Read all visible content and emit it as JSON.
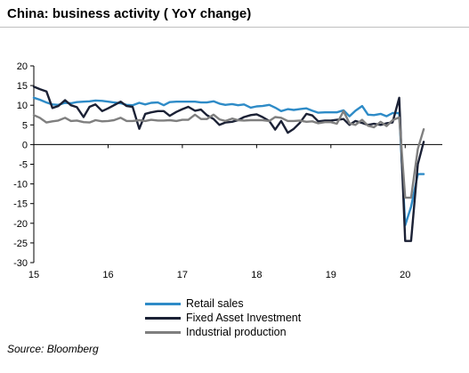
{
  "title": "China: business activity ( YoY change)",
  "source": "Source: Bloomberg",
  "chart_data": {
    "type": "line",
    "title": "China: business activity ( YoY change)",
    "xlabel": "",
    "ylabel": "",
    "ylim": [
      -30,
      20
    ],
    "yticks": [
      20,
      15,
      10,
      5,
      0,
      -5,
      -10,
      -15,
      -20,
      -25,
      -30
    ],
    "xlim": [
      2015.0,
      2020.5
    ],
    "xticks": [
      {
        "value": 2015,
        "label": "15"
      },
      {
        "value": 2016,
        "label": "16"
      },
      {
        "value": 2017,
        "label": "17"
      },
      {
        "value": 2018,
        "label": "18"
      },
      {
        "value": 2019,
        "label": "19"
      },
      {
        "value": 2020,
        "label": "20"
      }
    ],
    "grid": false,
    "legend_position": "bottom",
    "series": [
      {
        "name": "Retail sales",
        "color": "#2e8bc7",
        "x": [
          2015.0,
          2015.08,
          2015.17,
          2015.25,
          2015.33,
          2015.42,
          2015.5,
          2015.58,
          2015.67,
          2015.75,
          2015.83,
          2015.92,
          2016.0,
          2016.08,
          2016.17,
          2016.25,
          2016.33,
          2016.42,
          2016.5,
          2016.58,
          2016.67,
          2016.75,
          2016.83,
          2016.92,
          2017.0,
          2017.08,
          2017.17,
          2017.25,
          2017.33,
          2017.42,
          2017.5,
          2017.58,
          2017.67,
          2017.75,
          2017.83,
          2017.92,
          2018.0,
          2018.08,
          2018.17,
          2018.25,
          2018.33,
          2018.42,
          2018.5,
          2018.58,
          2018.67,
          2018.75,
          2018.83,
          2018.92,
          2019.0,
          2019.08,
          2019.17,
          2019.25,
          2019.33,
          2019.42,
          2019.5,
          2019.58,
          2019.67,
          2019.75,
          2019.83,
          2019.92,
          2020.0,
          2020.08,
          2020.17,
          2020.25
        ],
        "y": [
          11.9,
          11.4,
          10.7,
          10.2,
          10.1,
          10.6,
          10.5,
          10.8,
          10.9,
          11.0,
          11.2,
          11.1,
          10.9,
          10.7,
          10.5,
          10.1,
          10.0,
          10.6,
          10.2,
          10.6,
          10.7,
          10.0,
          10.8,
          10.9,
          10.9,
          10.9,
          10.9,
          10.7,
          10.7,
          11.0,
          10.4,
          10.1,
          10.3,
          10.0,
          10.2,
          9.4,
          9.7,
          9.8,
          10.1,
          9.4,
          8.5,
          9.0,
          8.8,
          9.0,
          9.2,
          8.6,
          8.1,
          8.2,
          8.2,
          8.2,
          8.7,
          7.2,
          8.6,
          9.8,
          7.6,
          7.5,
          7.8,
          7.2,
          8.0,
          8.0,
          -20.5,
          -15.8,
          -7.5,
          -7.5
        ]
      },
      {
        "name": "Fixed Asset Investment",
        "color": "#1b2135",
        "x": [
          2015.0,
          2015.08,
          2015.17,
          2015.25,
          2015.33,
          2015.42,
          2015.5,
          2015.58,
          2015.67,
          2015.75,
          2015.83,
          2015.92,
          2016.0,
          2016.08,
          2016.17,
          2016.25,
          2016.33,
          2016.42,
          2016.5,
          2016.58,
          2016.67,
          2016.75,
          2016.83,
          2016.92,
          2017.0,
          2017.08,
          2017.17,
          2017.25,
          2017.33,
          2017.42,
          2017.5,
          2017.58,
          2017.67,
          2017.75,
          2017.83,
          2017.92,
          2018.0,
          2018.08,
          2018.17,
          2018.25,
          2018.33,
          2018.42,
          2018.5,
          2018.58,
          2018.67,
          2018.75,
          2018.83,
          2018.92,
          2019.0,
          2019.08,
          2019.17,
          2019.25,
          2019.33,
          2019.42,
          2019.5,
          2019.58,
          2019.67,
          2019.75,
          2019.83,
          2019.92,
          2020.0,
          2020.08,
          2020.17,
          2020.25
        ],
        "y": [
          14.7,
          14.1,
          13.5,
          9.3,
          9.8,
          11.3,
          10.0,
          9.5,
          7.0,
          9.6,
          10.2,
          8.5,
          9.2,
          10.0,
          10.9,
          9.8,
          9.6,
          4.0,
          7.8,
          8.2,
          8.5,
          8.5,
          7.3,
          8.3,
          9.0,
          9.6,
          8.6,
          8.9,
          7.5,
          6.5,
          5.0,
          5.6,
          5.8,
          6.2,
          7.0,
          7.5,
          7.7,
          7.0,
          6.0,
          3.8,
          6.0,
          3.0,
          4.0,
          5.5,
          7.8,
          7.4,
          5.9,
          6.1,
          6.1,
          6.3,
          6.5,
          5.0,
          6.0,
          5.5,
          5.0,
          5.3,
          5.0,
          5.4,
          5.6,
          11.9,
          -24.5,
          -24.5,
          -5.0,
          0.7
        ]
      },
      {
        "name": "Industrial production",
        "color": "#7f7f7f",
        "x": [
          2015.0,
          2015.08,
          2015.17,
          2015.25,
          2015.33,
          2015.42,
          2015.5,
          2015.58,
          2015.67,
          2015.75,
          2015.83,
          2015.92,
          2016.0,
          2016.08,
          2016.17,
          2016.25,
          2016.33,
          2016.42,
          2016.5,
          2016.58,
          2016.67,
          2016.75,
          2016.83,
          2016.92,
          2017.0,
          2017.08,
          2017.17,
          2017.25,
          2017.33,
          2017.42,
          2017.5,
          2017.58,
          2017.67,
          2017.75,
          2017.83,
          2017.92,
          2018.0,
          2018.08,
          2018.17,
          2018.25,
          2018.33,
          2018.42,
          2018.5,
          2018.58,
          2018.67,
          2018.75,
          2018.83,
          2018.92,
          2019.0,
          2019.08,
          2019.17,
          2019.25,
          2019.33,
          2019.42,
          2019.5,
          2019.58,
          2019.67,
          2019.75,
          2019.83,
          2019.92,
          2020.0,
          2020.08,
          2020.17,
          2020.25
        ],
        "y": [
          7.5,
          6.8,
          5.6,
          5.9,
          6.1,
          6.8,
          6.0,
          6.1,
          5.7,
          5.6,
          6.2,
          5.9,
          6.0,
          6.2,
          6.8,
          6.0,
          6.0,
          6.2,
          6.0,
          6.3,
          6.1,
          6.1,
          6.2,
          6.0,
          6.3,
          6.3,
          7.6,
          6.5,
          6.5,
          7.6,
          6.4,
          6.0,
          6.6,
          6.2,
          6.1,
          6.2,
          6.2,
          6.2,
          6.0,
          7.0,
          6.8,
          6.0,
          6.0,
          6.1,
          5.8,
          5.9,
          5.4,
          5.7,
          5.7,
          5.3,
          8.5,
          5.4,
          5.0,
          6.3,
          4.8,
          4.4,
          5.8,
          4.7,
          6.2,
          6.9,
          -13.5,
          -13.5,
          -1.1,
          3.9
        ]
      }
    ]
  }
}
